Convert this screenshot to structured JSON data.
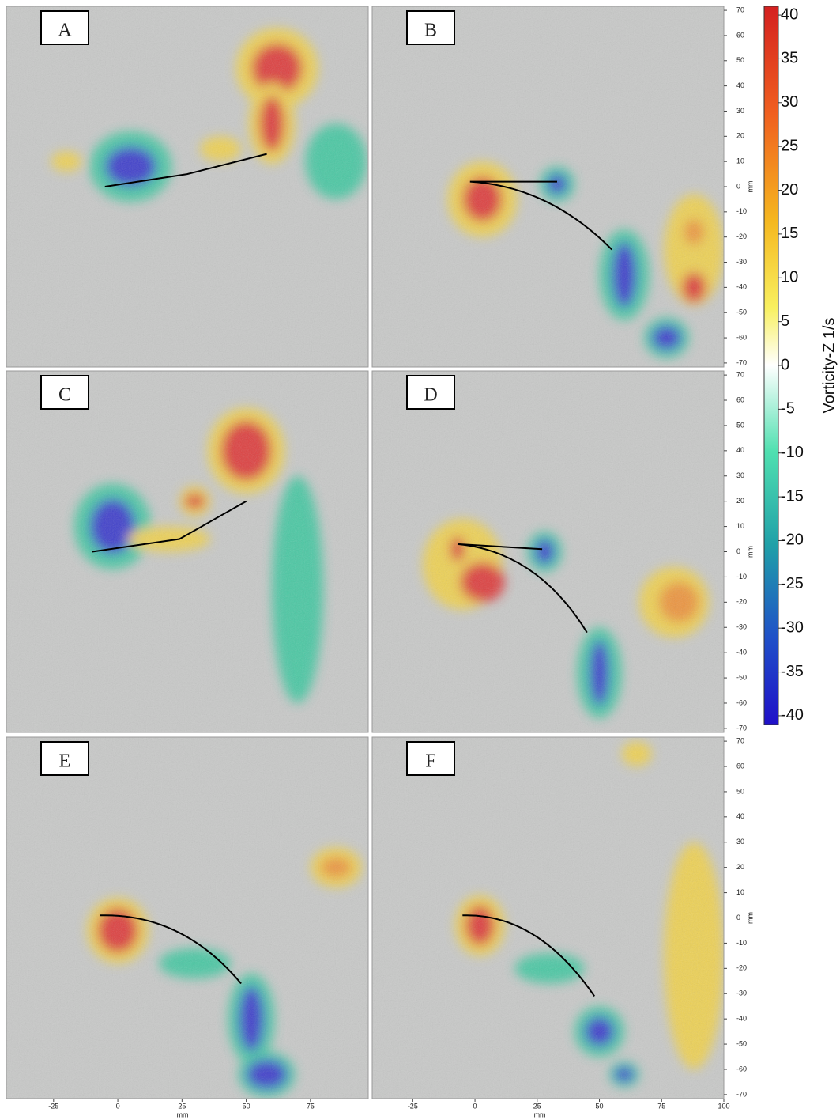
{
  "panels": [
    {
      "label": "A"
    },
    {
      "label": "B"
    },
    {
      "label": "C"
    },
    {
      "label": "D"
    },
    {
      "label": "E"
    },
    {
      "label": "F"
    }
  ],
  "y_axis": {
    "label": "mm",
    "lim": [
      -71.6,
      71.6
    ],
    "ticks": [
      70,
      60,
      50,
      40,
      30,
      20,
      10,
      0,
      -10,
      -20,
      -30,
      -40,
      -50,
      -60,
      -70
    ]
  },
  "x_axis_left": {
    "label": "mm",
    "lim": [
      -43.4,
      97.5
    ],
    "ticks": [
      -25,
      0,
      25,
      50,
      75
    ]
  },
  "x_axis_right": {
    "label": "mm",
    "lim": [
      -41.3,
      100
    ],
    "ticks": [
      -25,
      0,
      25,
      50,
      75,
      100
    ]
  },
  "colorbar": {
    "label": "Vorticity-Z 1/s",
    "lim": [
      -41,
      41
    ],
    "ticks": [
      40,
      35,
      30,
      25,
      20,
      15,
      10,
      5,
      0,
      -5,
      -10,
      -15,
      -20,
      -25,
      -30,
      -35,
      -40
    ]
  }
}
